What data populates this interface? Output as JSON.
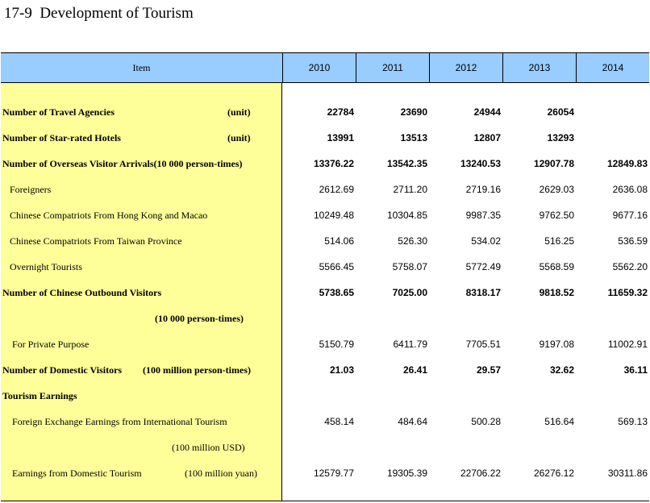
{
  "title": "17-9  Development of Tourism",
  "header": {
    "item": "Item",
    "years": [
      "2010",
      "2011",
      "2012",
      "2013",
      "2014"
    ]
  },
  "rows": [
    {
      "label": "Number of Travel Agencies",
      "unit": "(unit)",
      "bold": true,
      "values": [
        "22784",
        "23690",
        "24944",
        "26054",
        ""
      ]
    },
    {
      "label": "Number of Star-rated Hotels",
      "unit": "(unit)",
      "bold": true,
      "values": [
        "13991",
        "13513",
        "12807",
        "13293",
        ""
      ]
    },
    {
      "label": "Number of Overseas Visitor Arrivals(10 000 person-times)",
      "unit": "",
      "bold": true,
      "values": [
        "13376.22",
        "13542.35",
        "13240.53",
        "12907.78",
        "12849.83"
      ]
    },
    {
      "label": "Foreigners",
      "unit": "",
      "bold": false,
      "values": [
        "2612.69",
        "2711.20",
        "2719.16",
        "2629.03",
        "2636.08"
      ]
    },
    {
      "label": "Chinese Compatriots From Hong Kong and Macao",
      "unit": "",
      "bold": false,
      "values": [
        "10249.48",
        "10304.85",
        "9987.35",
        "9762.50",
        "9677.16"
      ]
    },
    {
      "label": "Chinese Compatriots From Taiwan Province",
      "unit": "",
      "bold": false,
      "values": [
        "514.06",
        "526.30",
        "534.02",
        "516.25",
        "536.59"
      ]
    },
    {
      "label": "Overnight Tourists",
      "unit": "",
      "bold": false,
      "values": [
        "5566.45",
        "5758.07",
        "5772.49",
        "5568.59",
        "5562.20"
      ]
    },
    {
      "label": "Number of Chinese Outbound Visitors",
      "unit": "",
      "bold": true,
      "values": [
        "5738.65",
        "7025.00",
        "8318.17",
        "9818.52",
        "11659.32"
      ]
    },
    {
      "label": "",
      "unit": "(10 000 person-times)",
      "bold": true,
      "values": [
        "",
        "",
        "",
        "",
        ""
      ]
    },
    {
      "label": "For Private Purpose",
      "unit": "",
      "bold": false,
      "values": [
        "5150.79",
        "6411.79",
        "7705.51",
        "9197.08",
        "11002.91"
      ]
    },
    {
      "label": "Number of Domestic Visitors",
      "unit": "(100 million person-times)",
      "bold": true,
      "values": [
        "21.03",
        "26.41",
        "29.57",
        "32.62",
        "36.11"
      ]
    },
    {
      "label": "Tourism Earnings",
      "unit": "",
      "bold": true,
      "values": [
        "",
        "",
        "",
        "",
        ""
      ]
    },
    {
      "label": "Foreign Exchange Earnings from International Tourism",
      "unit": "",
      "bold": false,
      "values": [
        "458.14",
        "484.64",
        "500.28",
        "516.64",
        "569.13"
      ]
    },
    {
      "label": "",
      "unit": "(100 million USD)",
      "bold": false,
      "values": [
        "",
        "",
        "",
        "",
        ""
      ]
    },
    {
      "label": "Earnings from Domestic Tourism",
      "unit": "(100 million yuan)",
      "bold": false,
      "values": [
        "12579.77",
        "19305.39",
        "22706.22",
        "26276.12",
        "30311.86"
      ]
    }
  ]
}
